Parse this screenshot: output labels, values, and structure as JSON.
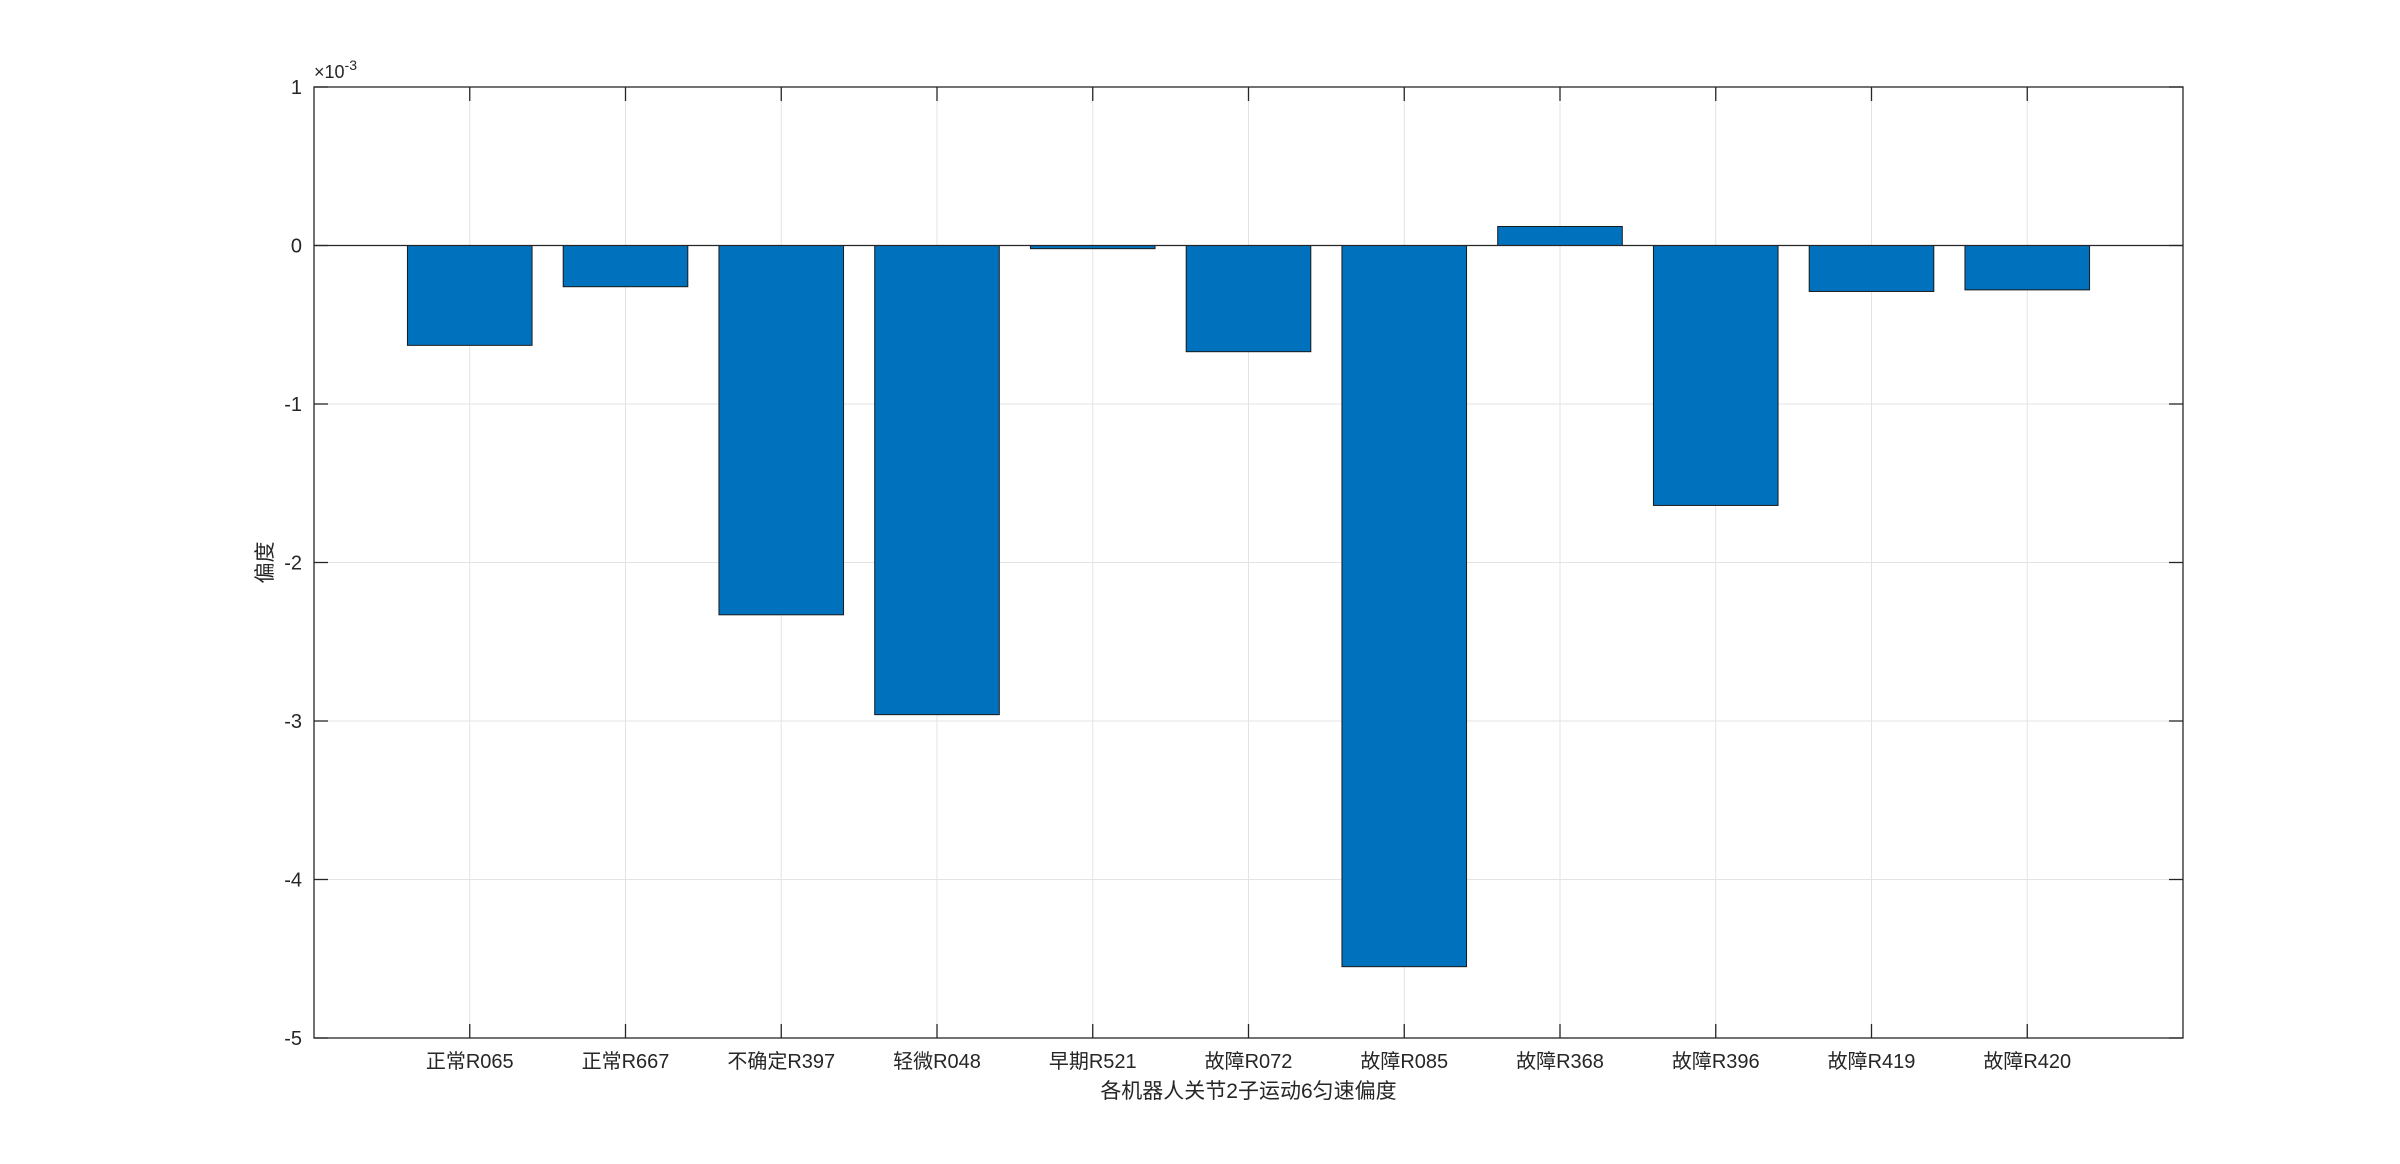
{
  "chart_data": {
    "type": "bar",
    "title": "",
    "xlabel": "各机器人关节2子运动6匀速偏度",
    "ylabel": "偏度",
    "y_exponent_label": "×10",
    "y_exponent_power": "-3",
    "y_scale": 0.001,
    "ylim": [
      -5,
      1
    ],
    "yticks": [
      -5,
      -4,
      -3,
      -2,
      -1,
      0,
      1
    ],
    "ytick_labels": [
      "-5",
      "-4",
      "-3",
      "-2",
      "-1",
      "0",
      "1"
    ],
    "x_slot_count": 12,
    "grid": true,
    "bar_color": "#0072BD",
    "categories": [
      "正常R065",
      "正常R667",
      "不确定R397",
      "轻微R048",
      "早期R521",
      "故障R072",
      "故障R085",
      "故障R368",
      "故障R396",
      "故障R419",
      "故障R420"
    ],
    "values": [
      -0.63,
      -0.26,
      -2.33,
      -2.96,
      -0.02,
      -0.67,
      -4.55,
      0.12,
      -1.64,
      -0.29,
      -0.28
    ]
  }
}
